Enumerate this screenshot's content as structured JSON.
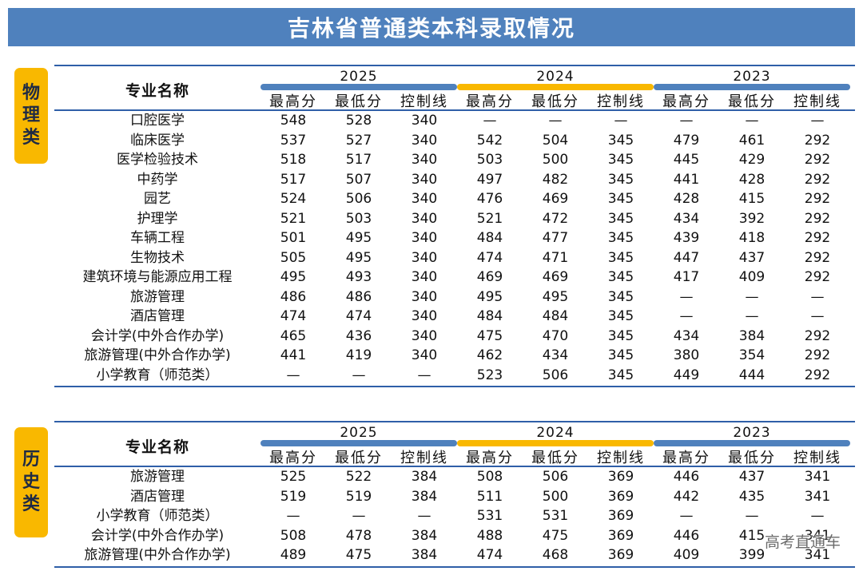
{
  "title": "吉林省普通类本科录取情况",
  "colors": {
    "title_bg": "#4f81bd",
    "label_bg": "#f9b800",
    "line": "#2f5fa8",
    "bar_2025": "#4f81bd",
    "bar_2024": "#f9b800",
    "bar_2023": "#4f81bd"
  },
  "years": [
    "2025",
    "2024",
    "2023"
  ],
  "sub_headers": [
    "最高分",
    "最低分",
    "控制线"
  ],
  "name_header": "专业名称",
  "physics": {
    "label_chars": [
      "物",
      "理",
      "类"
    ],
    "rows": [
      {
        "name": "口腔医学",
        "values": [
          "548",
          "528",
          "340",
          "—",
          "—",
          "—",
          "—",
          "—",
          "—"
        ]
      },
      {
        "name": "临床医学",
        "values": [
          "537",
          "527",
          "340",
          "542",
          "504",
          "345",
          "479",
          "461",
          "292"
        ]
      },
      {
        "name": "医学检验技术",
        "values": [
          "518",
          "517",
          "340",
          "503",
          "500",
          "345",
          "445",
          "429",
          "292"
        ]
      },
      {
        "name": "中药学",
        "values": [
          "517",
          "507",
          "340",
          "497",
          "482",
          "345",
          "441",
          "428",
          "292"
        ]
      },
      {
        "name": "园艺",
        "values": [
          "524",
          "506",
          "340",
          "476",
          "469",
          "345",
          "428",
          "415",
          "292"
        ]
      },
      {
        "name": "护理学",
        "values": [
          "521",
          "503",
          "340",
          "521",
          "472",
          "345",
          "434",
          "392",
          "292"
        ]
      },
      {
        "name": "车辆工程",
        "values": [
          "501",
          "495",
          "340",
          "484",
          "477",
          "345",
          "439",
          "418",
          "292"
        ]
      },
      {
        "name": "生物技术",
        "values": [
          "505",
          "495",
          "340",
          "474",
          "471",
          "345",
          "447",
          "437",
          "292"
        ]
      },
      {
        "name": "建筑环境与能源应用工程",
        "values": [
          "495",
          "493",
          "340",
          "469",
          "469",
          "345",
          "417",
          "409",
          "292"
        ]
      },
      {
        "name": "旅游管理",
        "values": [
          "486",
          "486",
          "340",
          "495",
          "495",
          "345",
          "—",
          "—",
          "—"
        ]
      },
      {
        "name": "酒店管理",
        "values": [
          "474",
          "474",
          "340",
          "484",
          "484",
          "345",
          "—",
          "—",
          "—"
        ]
      },
      {
        "name": "会计学(中外合作办学)",
        "values": [
          "465",
          "436",
          "340",
          "475",
          "470",
          "345",
          "434",
          "384",
          "292"
        ]
      },
      {
        "name": "旅游管理(中外合作办学)",
        "values": [
          "441",
          "419",
          "340",
          "462",
          "434",
          "345",
          "380",
          "354",
          "292"
        ]
      },
      {
        "name": "小学教育（师范类）",
        "values": [
          "—",
          "—",
          "—",
          "523",
          "506",
          "345",
          "449",
          "444",
          "292"
        ]
      }
    ]
  },
  "history": {
    "label_chars": [
      "历",
      "史",
      "类"
    ],
    "rows": [
      {
        "name": "旅游管理",
        "values": [
          "525",
          "522",
          "384",
          "508",
          "506",
          "369",
          "446",
          "437",
          "341"
        ]
      },
      {
        "name": "酒店管理",
        "values": [
          "519",
          "519",
          "384",
          "511",
          "500",
          "369",
          "442",
          "435",
          "341"
        ]
      },
      {
        "name": "小学教育（师范类）",
        "values": [
          "—",
          "—",
          "—",
          "531",
          "531",
          "369",
          "—",
          "—",
          "—"
        ]
      },
      {
        "name": "会计学(中外合作办学)",
        "values": [
          "508",
          "478",
          "384",
          "488",
          "475",
          "369",
          "446",
          "415",
          "341"
        ]
      },
      {
        "name": "旅游管理(中外合作办学)",
        "values": [
          "489",
          "475",
          "384",
          "474",
          "468",
          "369",
          "409",
          "399",
          "341"
        ]
      }
    ]
  },
  "watermark": "高考直通车"
}
